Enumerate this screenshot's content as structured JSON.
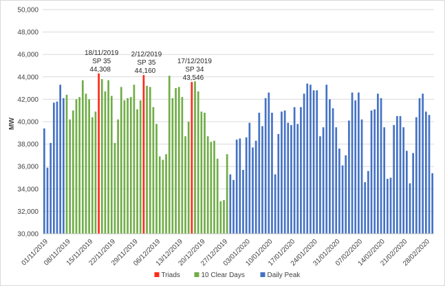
{
  "chart_data": {
    "type": "bar",
    "ylabel": "MW",
    "ylim": [
      30000,
      50000
    ],
    "yticks": [
      "30,000",
      "32,000",
      "34,000",
      "36,000",
      "38,000",
      "40,000",
      "42,000",
      "44,000",
      "46,000",
      "48,000",
      "50,000"
    ],
    "xtick_labels": [
      "01/11/2019",
      "08/11/2019",
      "15/11/2019",
      "22/11/2019",
      "29/11/2019",
      "06/12/2019",
      "13/12/2019",
      "20/12/2019",
      "27/12/2019",
      "03/01/2020",
      "10/01/2020",
      "17/01/2020",
      "24/01/2020",
      "31/01/2020",
      "07/02/2020",
      "14/02/2020",
      "21/02/2020",
      "28/02/2020"
    ],
    "legend": [
      "Triads",
      "10 Clear Days",
      "Daily Peak"
    ],
    "colors": {
      "Triads": "#ff2a1a",
      "10 Clear Days": "#70ad47",
      "Daily Peak": "#4472c4"
    },
    "series_note": "values are daily peaks from 01/11/2019 to 29/02/2020; category index 0 = 01/11/2019",
    "values": [
      39400,
      35900,
      38100,
      41700,
      41800,
      43300,
      42100,
      42400,
      40200,
      41000,
      42000,
      42200,
      43700,
      42500,
      42000,
      40400,
      40900,
      44308,
      43800,
      42700,
      43700,
      42300,
      38100,
      40200,
      43100,
      41900,
      42100,
      42200,
      43300,
      41100,
      41900,
      44160,
      43200,
      43100,
      41300,
      39800,
      36900,
      36600,
      37100,
      44100,
      42100,
      43000,
      43100,
      42200,
      38700,
      40000,
      43546,
      43600,
      42700,
      40900,
      40800,
      38700,
      38200,
      38300,
      36700,
      32900,
      33000,
      37100,
      35300,
      34800,
      38400,
      38500,
      35700,
      38600,
      39900,
      37700,
      38300,
      40800,
      39600,
      42100,
      42600,
      40800,
      35300,
      38900,
      40900,
      41000,
      39900,
      39700,
      41300,
      39800,
      41300,
      42500,
      43400,
      43300,
      42800,
      42800,
      38700,
      39500,
      43300,
      42000,
      41200,
      39500,
      37600,
      36100,
      37000,
      40100,
      42600,
      41900,
      42600,
      40200,
      34600,
      35600,
      41000,
      41100,
      42500,
      42100,
      39500,
      34900,
      35000,
      39700,
      40500,
      40500,
      39500,
      37400,
      34500,
      37200,
      40400,
      42100,
      42500,
      40900,
      40600,
      35400
    ],
    "series_membership": {
      "Triads": [
        17,
        31,
        46
      ],
      "10 Clear Days_range": [
        7,
        57
      ]
    },
    "annotations": [
      {
        "index": 17,
        "date": "18/11/2019",
        "sp": "SP 35",
        "value_label": "44,308"
      },
      {
        "index": 31,
        "date": "2/12/2019",
        "sp": "SP 35",
        "value_label": "44,160"
      },
      {
        "index": 46,
        "date": "17/12/2019",
        "sp": "SP 34",
        "value_label": "43,546"
      }
    ]
  }
}
